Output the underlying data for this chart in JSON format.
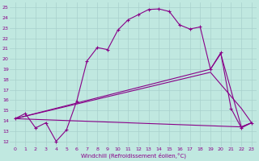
{
  "xlabel": "Windchill (Refroidissement éolien,°C)",
  "bg_color": "#c0e8e0",
  "line_color": "#880088",
  "grid_color": "#a8d0cc",
  "xlim": [
    -0.5,
    23.5
  ],
  "ylim": [
    11.5,
    25.5
  ],
  "xticks": [
    0,
    1,
    2,
    3,
    4,
    5,
    6,
    7,
    8,
    9,
    10,
    11,
    12,
    13,
    14,
    15,
    16,
    17,
    18,
    19,
    20,
    21,
    22,
    23
  ],
  "yticks": [
    12,
    13,
    14,
    15,
    16,
    17,
    18,
    19,
    20,
    21,
    22,
    23,
    24,
    25
  ],
  "series1_x": [
    0,
    1,
    2,
    3,
    4,
    5,
    6,
    7,
    8,
    9,
    10,
    11,
    12,
    13,
    14,
    15,
    16,
    17,
    18,
    19,
    20,
    21,
    22,
    23
  ],
  "series1_y": [
    14.2,
    14.7,
    13.3,
    13.8,
    12.0,
    13.1,
    15.9,
    19.8,
    21.1,
    20.9,
    22.8,
    23.8,
    24.3,
    24.8,
    24.85,
    24.6,
    23.3,
    22.9,
    23.1,
    19.0,
    20.6,
    15.2,
    13.3,
    13.8
  ],
  "series2_x": [
    0,
    22,
    23
  ],
  "series2_y": [
    14.2,
    13.4,
    13.8
  ],
  "series3_x": [
    0,
    19,
    20,
    22,
    23
  ],
  "series3_y": [
    14.2,
    19.0,
    20.5,
    13.4,
    13.8
  ],
  "series4_x": [
    0,
    19,
    22,
    23
  ],
  "series4_y": [
    14.2,
    18.7,
    15.2,
    13.8
  ]
}
